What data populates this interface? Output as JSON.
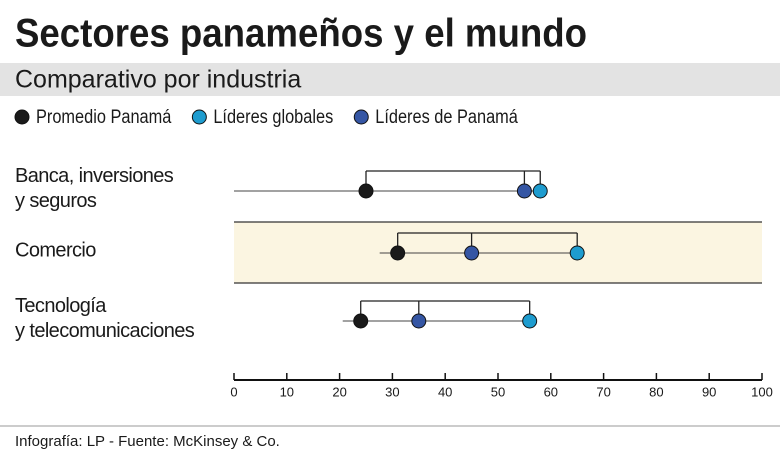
{
  "chart_data": {
    "type": "dot",
    "title": "Sectores panameños y el mundo",
    "subtitle": "Comparativo por industria",
    "categories": [
      "Banca, inversiones\ny seguros",
      "Comercio",
      "Tecnología\ny telecomunicaciones"
    ],
    "series": [
      {
        "name": "Promedio Panamá",
        "color": "#1a1a1a",
        "values": [
          25,
          31,
          24
        ]
      },
      {
        "name": "Líderes globales",
        "color": "#1e9ccf",
        "values": [
          58,
          65,
          56
        ]
      },
      {
        "name": "Líderes de Panamá",
        "color": "#3556a4",
        "values": [
          55,
          45,
          35
        ]
      }
    ],
    "xlim": [
      0,
      100
    ],
    "xticks": [
      0,
      10,
      20,
      30,
      40,
      50,
      60,
      70,
      80,
      90,
      100
    ],
    "footer": "Infografía: LP  - Fuente: McKinsey & Co."
  }
}
